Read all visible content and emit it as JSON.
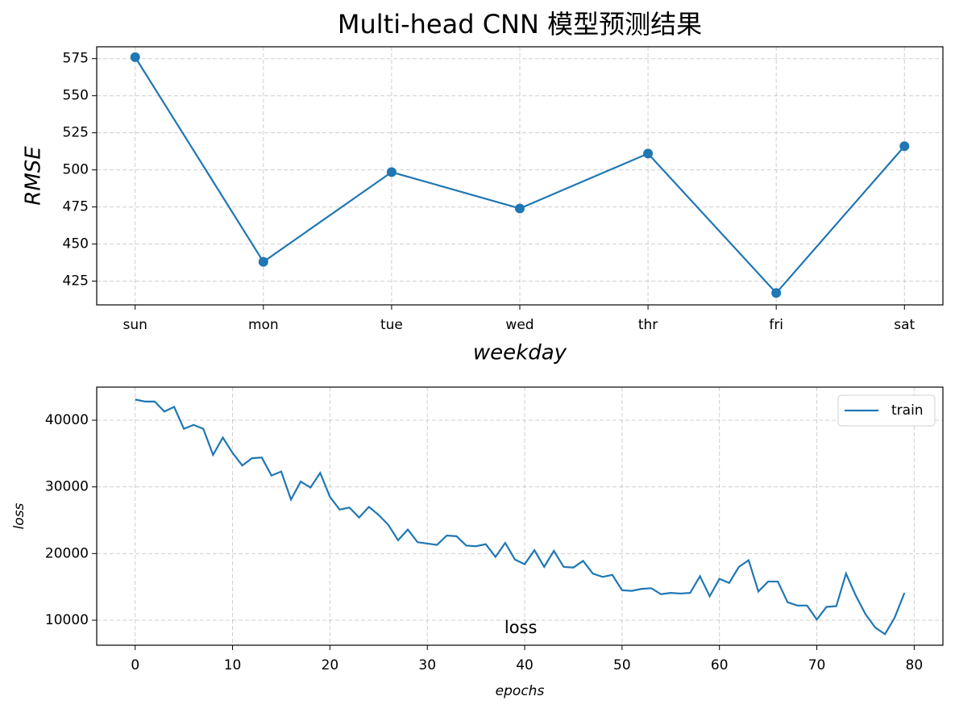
{
  "chart_data": [
    {
      "type": "line",
      "title": "Multi-head CNN 模型预测结果",
      "xlabel": "weekday",
      "ylabel": "RMSE",
      "categories": [
        "sun",
        "mon",
        "tue",
        "wed",
        "thr",
        "fri",
        "sat"
      ],
      "values": [
        576,
        438,
        498.5,
        474,
        511,
        417,
        516
      ],
      "color": "#1f77b4",
      "marker": "o",
      "ylim": [
        409,
        583
      ],
      "yticks": [
        425,
        450,
        475,
        500,
        525,
        550,
        575
      ],
      "grid": true
    },
    {
      "type": "line",
      "xlabel": "epochs",
      "ylabel": "loss",
      "x": [
        0,
        1,
        2,
        3,
        4,
        5,
        6,
        7,
        8,
        9,
        10,
        11,
        12,
        13,
        14,
        15,
        16,
        17,
        18,
        19,
        20,
        21,
        22,
        23,
        24,
        25,
        26,
        27,
        28,
        29,
        30,
        31,
        32,
        33,
        34,
        35,
        36,
        37,
        38,
        39,
        40,
        41,
        42,
        43,
        44,
        45,
        46,
        47,
        48,
        49,
        50,
        51,
        52,
        53,
        54,
        55,
        56,
        57,
        58,
        59,
        60,
        61,
        62,
        63,
        64,
        65,
        66,
        67,
        68,
        69,
        70,
        71,
        72,
        73,
        74,
        75,
        76,
        77,
        78,
        79
      ],
      "series": [
        {
          "name": "train",
          "color": "#1f77b4",
          "values": [
            43100,
            42800,
            42800,
            41300,
            42000,
            38700,
            39300,
            38700,
            34800,
            37400,
            35100,
            33200,
            34300,
            34400,
            31700,
            32300,
            28100,
            30800,
            29900,
            32100,
            28500,
            26600,
            26900,
            25400,
            27000,
            25800,
            24300,
            22000,
            23600,
            21700,
            21500,
            21300,
            22700,
            22600,
            21200,
            21100,
            21400,
            19500,
            21600,
            19100,
            18400,
            20500,
            18000,
            20400,
            18000,
            17900,
            18900,
            17000,
            16500,
            16800,
            14500,
            14400,
            14700,
            14800,
            13900,
            14100,
            14000,
            14100,
            16600,
            13600,
            16200,
            15600,
            18000,
            19000,
            14300,
            15800,
            15800,
            12700,
            12200,
            12200,
            10100,
            12000,
            12100,
            17000,
            13700,
            10900,
            8900,
            7900,
            10400,
            14100
          ]
        }
      ],
      "xlim": [
        -3.95,
        82.95
      ],
      "xticks": [
        0,
        10,
        20,
        30,
        40,
        50,
        60,
        70,
        80
      ],
      "ylim": [
        6250,
        44960
      ],
      "yticks": [
        10000,
        20000,
        30000,
        40000
      ],
      "grid": true,
      "legend": "upper right",
      "annotations": [
        {
          "text": "loss",
          "x": 39.6,
          "y": 8800
        }
      ]
    }
  ]
}
